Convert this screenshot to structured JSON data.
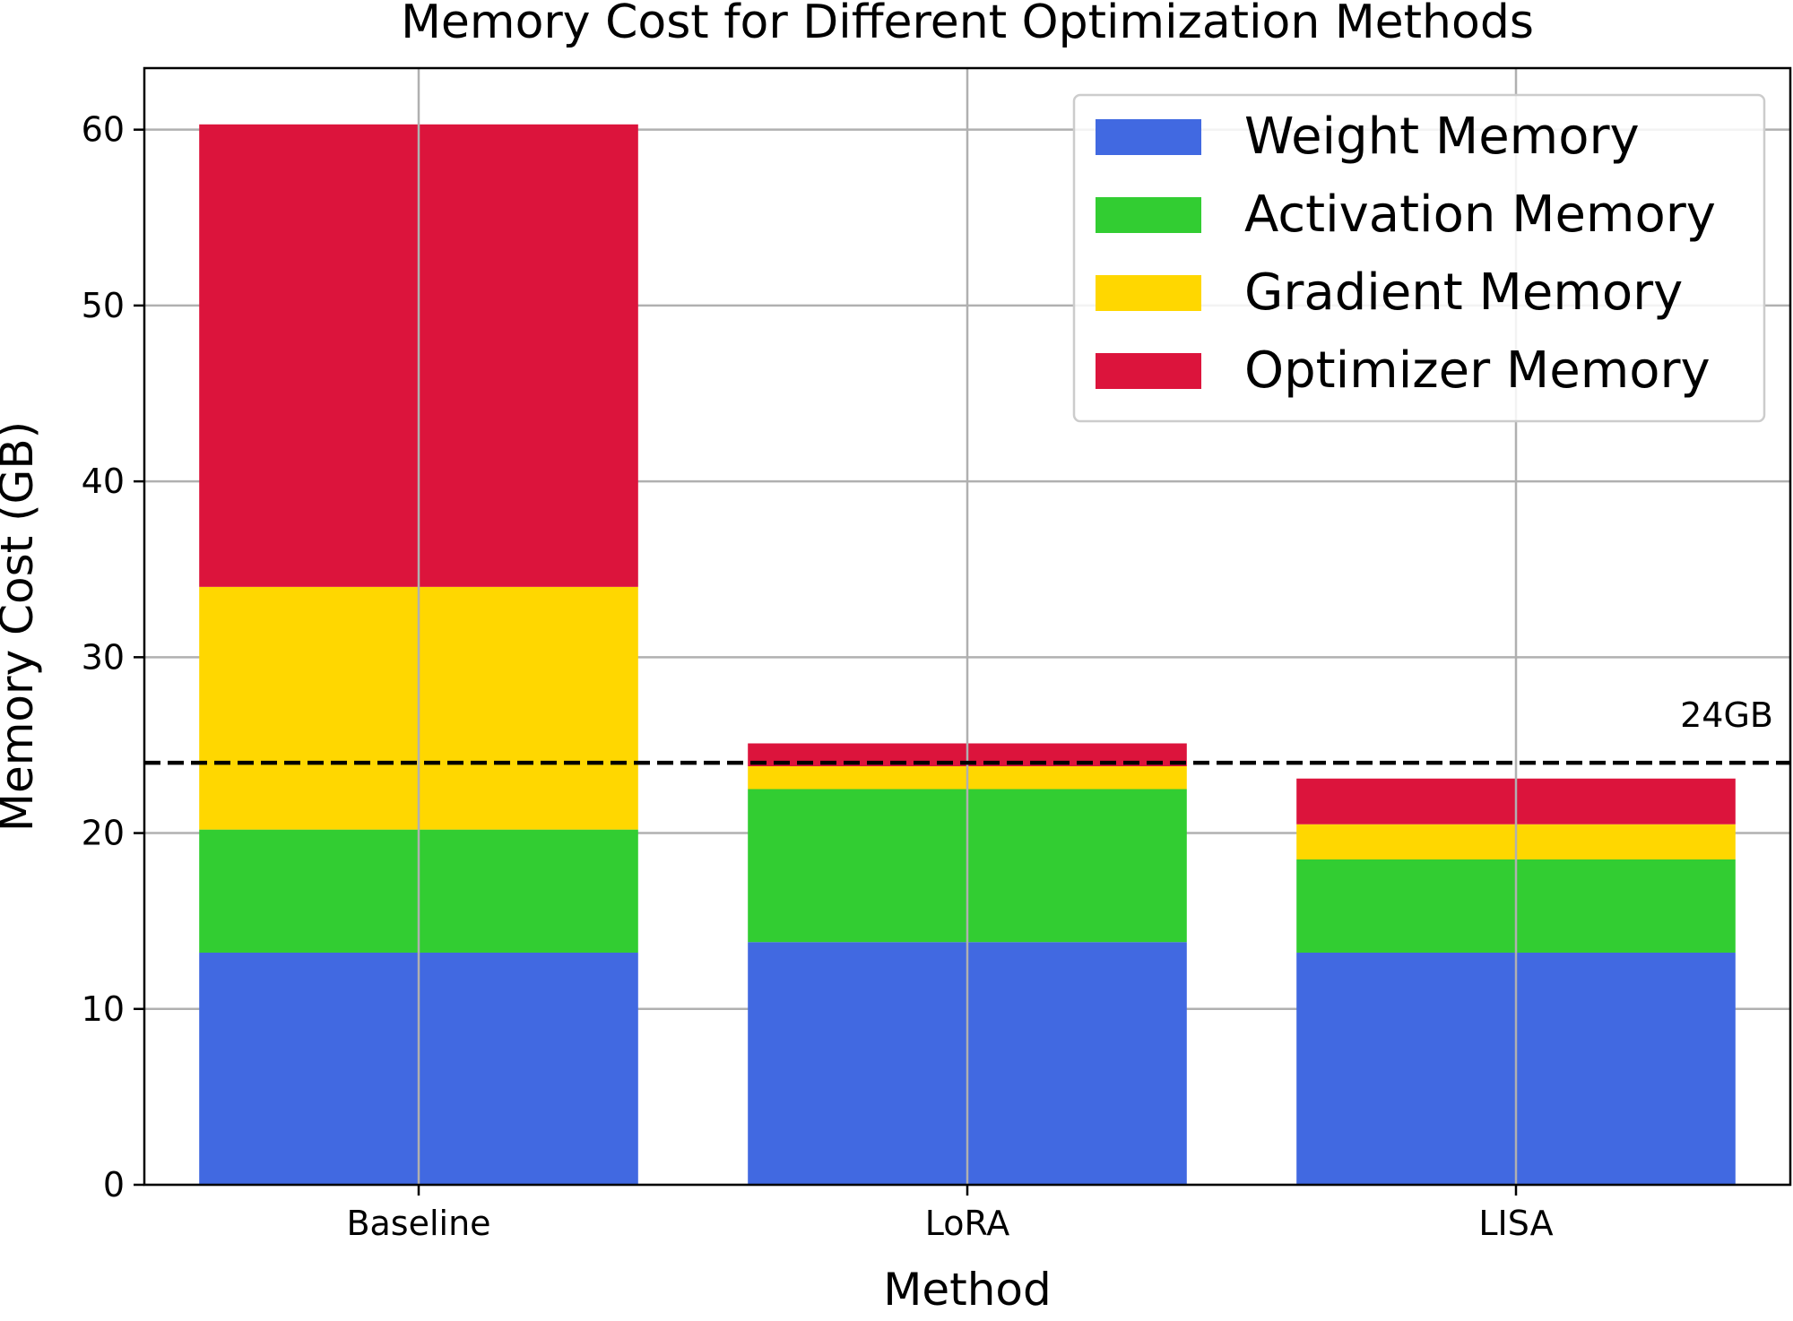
{
  "chart_data": {
    "type": "bar",
    "stacked": true,
    "title": "Memory Cost for Different Optimization Methods",
    "xlabel": "Method",
    "ylabel": "Memory Cost (GB)",
    "categories": [
      "Baseline",
      "LoRA",
      "LISA"
    ],
    "ylim": [
      0,
      63.5
    ],
    "yticks": [
      0,
      10,
      20,
      30,
      40,
      50,
      60
    ],
    "grid": true,
    "legend_position": "top-right",
    "series": [
      {
        "name": "Weight Memory",
        "color": "#4169E1",
        "values": [
          13.2,
          13.8,
          13.2
        ]
      },
      {
        "name": "Activation Memory",
        "color": "#32CD32",
        "values": [
          7.0,
          8.7,
          5.3
        ]
      },
      {
        "name": "Gradient Memory",
        "color": "#FFD700",
        "values": [
          13.8,
          1.3,
          2.0
        ]
      },
      {
        "name": "Optimizer Memory",
        "color": "#DC143C",
        "values": [
          26.3,
          1.3,
          2.6
        ]
      }
    ],
    "reference_line": {
      "value": 24,
      "label": "24GB",
      "color": "#000000",
      "style": "dashed"
    }
  }
}
